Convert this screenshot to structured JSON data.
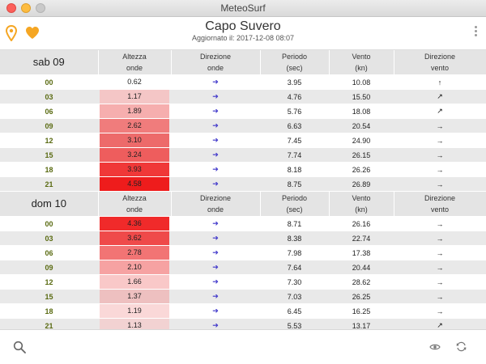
{
  "window": {
    "title": "MeteoSurf"
  },
  "header": {
    "location": "Capo Suvero",
    "updated": "Aggiornato il: 2017-12-08 08:07",
    "pin_icon": "map-pin-icon",
    "heart_icon": "heart-icon",
    "more_icon": "more-vertical-icon"
  },
  "colors": {
    "accent": "#f5a623",
    "hour_text": "#5a6b12",
    "arrow_wave": "#3b32c9"
  },
  "columns": {
    "wave_height": "Altezza\nonde",
    "wave_dir": "Direzione\nonde",
    "period": "Periodo\n(sec)",
    "wind": "Vento\n(kn)",
    "wind_dir": "Direzione\nvento"
  },
  "days": [
    {
      "label": "sab 09",
      "rows": [
        {
          "hour": "00",
          "wave": "0.62",
          "wave_color": "#ffffff",
          "wave_dir": "➔",
          "period": "3.95",
          "wind": "10.08",
          "wind_dir": "↑"
        },
        {
          "hour": "03",
          "wave": "1.17",
          "wave_color": "#f4c6c6",
          "wave_dir": "➔",
          "period": "4.76",
          "wind": "15.50",
          "wind_dir": "↗"
        },
        {
          "hour": "06",
          "wave": "1.89",
          "wave_color": "#f6aeae",
          "wave_dir": "➔",
          "period": "5.76",
          "wind": "18.08",
          "wind_dir": "↗"
        },
        {
          "hour": "09",
          "wave": "2.62",
          "wave_color": "#f07c7c",
          "wave_dir": "➔",
          "period": "6.63",
          "wind": "20.54",
          "wind_dir": "→"
        },
        {
          "hour": "12",
          "wave": "3.10",
          "wave_color": "#ed6a6a",
          "wave_dir": "➔",
          "period": "7.45",
          "wind": "24.90",
          "wind_dir": "→"
        },
        {
          "hour": "15",
          "wave": "3.24",
          "wave_color": "#ee5d5d",
          "wave_dir": "➔",
          "period": "7.74",
          "wind": "26.15",
          "wind_dir": "→"
        },
        {
          "hour": "18",
          "wave": "3.93",
          "wave_color": "#f03838",
          "wave_dir": "➔",
          "period": "8.18",
          "wind": "26.26",
          "wind_dir": "→"
        },
        {
          "hour": "21",
          "wave": "4.58",
          "wave_color": "#ee1c1c",
          "wave_dir": "➔",
          "period": "8.75",
          "wind": "26.89",
          "wind_dir": "→"
        }
      ]
    },
    {
      "label": "dom 10",
      "rows": [
        {
          "hour": "00",
          "wave": "4.36",
          "wave_color": "#f02a2a",
          "wave_dir": "➔",
          "period": "8.71",
          "wind": "26.16",
          "wind_dir": "→"
        },
        {
          "hour": "03",
          "wave": "3.62",
          "wave_color": "#ef4a4a",
          "wave_dir": "➔",
          "period": "8.38",
          "wind": "22.74",
          "wind_dir": "→"
        },
        {
          "hour": "06",
          "wave": "2.78",
          "wave_color": "#f27474",
          "wave_dir": "➔",
          "period": "7.98",
          "wind": "17.38",
          "wind_dir": "→"
        },
        {
          "hour": "09",
          "wave": "2.10",
          "wave_color": "#f6a2a2",
          "wave_dir": "➔",
          "period": "7.64",
          "wind": "20.44",
          "wind_dir": "→"
        },
        {
          "hour": "12",
          "wave": "1.66",
          "wave_color": "#f9c8c8",
          "wave_dir": "➔",
          "period": "7.30",
          "wind": "28.62",
          "wind_dir": "→"
        },
        {
          "hour": "15",
          "wave": "1.37",
          "wave_color": "#eec0c0",
          "wave_dir": "➔",
          "period": "7.03",
          "wind": "26.25",
          "wind_dir": "→"
        },
        {
          "hour": "18",
          "wave": "1.19",
          "wave_color": "#fad8d8",
          "wave_dir": "➔",
          "period": "6.45",
          "wind": "16.25",
          "wind_dir": "→"
        },
        {
          "hour": "21",
          "wave": "1.13",
          "wave_color": "#f2d2d2",
          "wave_dir": "➔",
          "period": "5.53",
          "wind": "13.17",
          "wind_dir": "↗"
        }
      ]
    }
  ],
  "partial_header": {
    "wave_height": "Altezza",
    "wave_dir": "Direzione",
    "period": "Periodo",
    "wind": "Vento",
    "wind_dir": "Direzione"
  },
  "toolbar": {
    "search_icon": "search-icon",
    "eye_icon": "eye-icon",
    "refresh_icon": "refresh-icon"
  }
}
